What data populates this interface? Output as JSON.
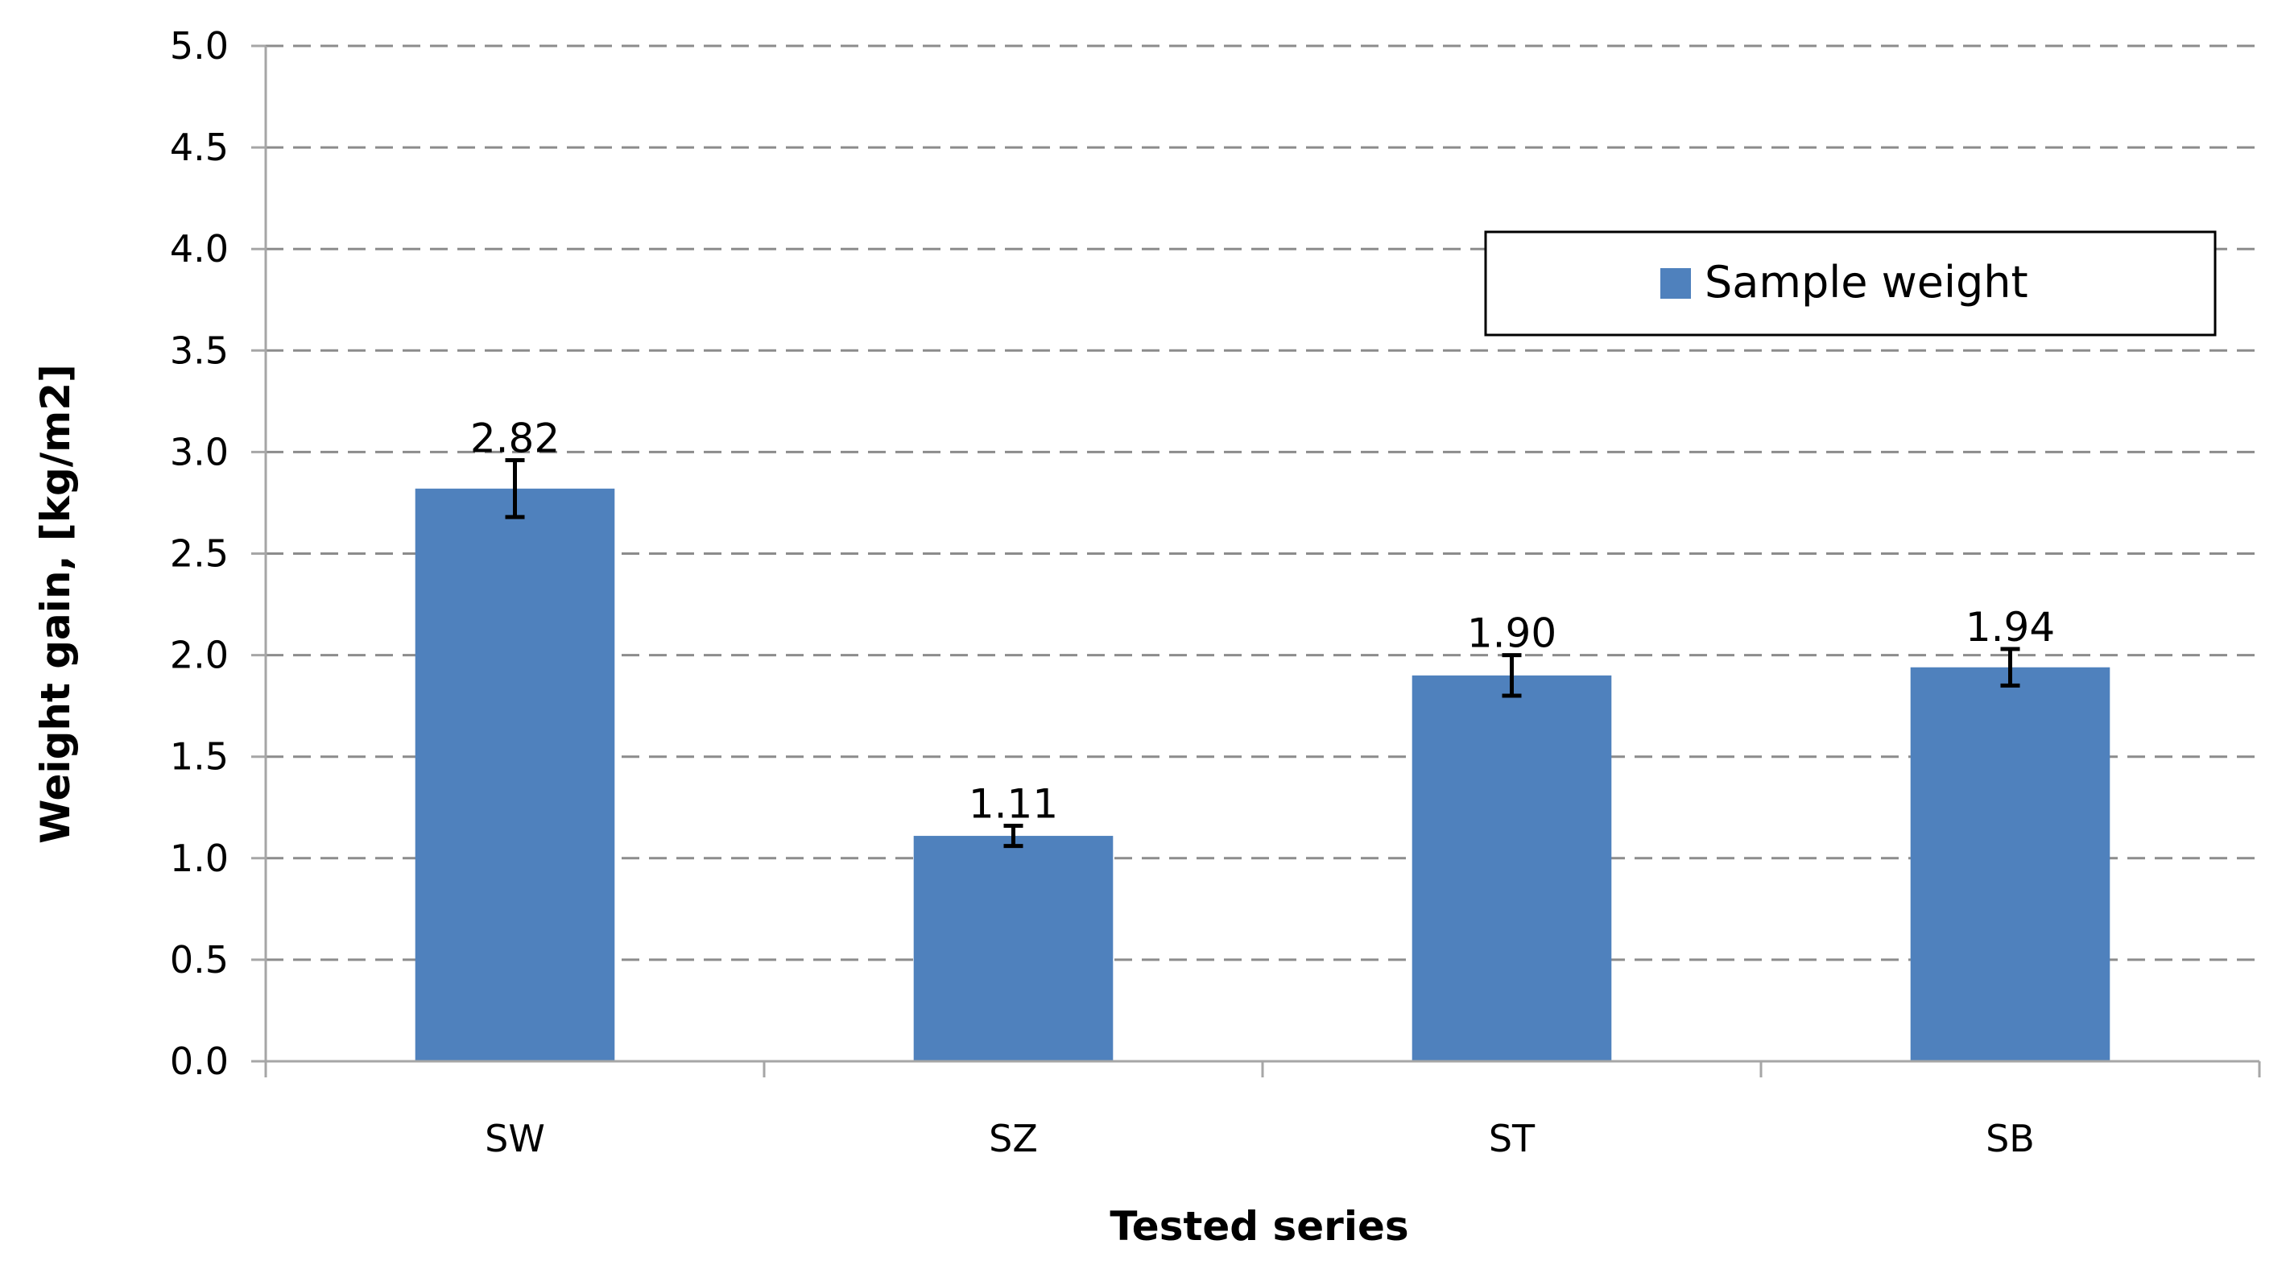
{
  "chart_data": {
    "type": "bar",
    "categories": [
      "SW",
      "SZ",
      "ST",
      "SB"
    ],
    "series": [
      {
        "name": "Sample weight",
        "values": [
          2.82,
          1.11,
          1.9,
          1.94
        ],
        "error": [
          0.14,
          0.05,
          0.1,
          0.09
        ],
        "data_labels": [
          "2.82",
          "1.11",
          "1.90",
          "1.94"
        ]
      }
    ],
    "xlabel": "Tested series",
    "ylabel": "Weight gain, [kg/m2]",
    "ylim": [
      0,
      5
    ],
    "yticks": [
      "0.0",
      "0.5",
      "1.0",
      "1.5",
      "2.0",
      "2.5",
      "3.0",
      "3.5",
      "4.0",
      "4.5",
      "5.0"
    ],
    "grid": "horizontal dashed",
    "legend_position": "top-right",
    "colors": {
      "bar": "#4f81bd",
      "grid": "#8c8c8c",
      "axis": "#a6a6a6",
      "error_bar": "#000000"
    }
  }
}
